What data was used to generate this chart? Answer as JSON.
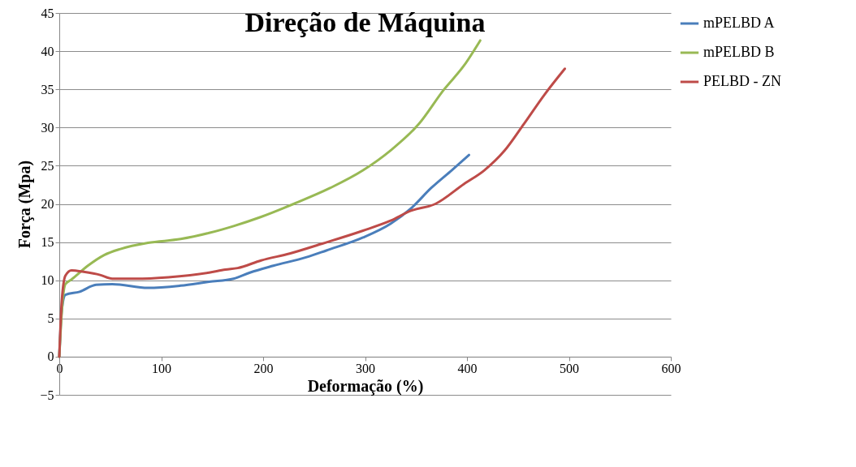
{
  "chart_data": {
    "type": "line",
    "title": "Direção de Máquina",
    "xlabel": "Deformação (%)",
    "ylabel": "Força (Mpa)",
    "xlim": [
      0,
      600
    ],
    "xticks": [
      0,
      100,
      200,
      300,
      400,
      500,
      600
    ],
    "ylim": [
      -5,
      45
    ],
    "yticks": [
      -5,
      0,
      5,
      10,
      15,
      20,
      25,
      30,
      35,
      40,
      45
    ],
    "grid": "y",
    "legend": "right",
    "marker": "none",
    "line_style": "solid",
    "series": [
      {
        "name": "mPELBD A",
        "color": "#4a7ebb",
        "x": [
          0,
          2.4,
          6,
          20,
          36,
          52,
          87,
          119,
          147,
          171,
          187,
          210,
          242,
          262,
          298,
          325,
          345,
          365,
          385,
          402
        ],
        "values": [
          0,
          6,
          8.1,
          8.5,
          9.4,
          9.5,
          9.0,
          9.3,
          9.8,
          10.2,
          11.0,
          11.9,
          13.0,
          13.9,
          15.6,
          17.4,
          19.4,
          22.1,
          24.4,
          26.4
        ]
      },
      {
        "name": "mPELBD B",
        "color": "#98b954",
        "x": [
          0,
          3.2,
          6,
          12,
          28,
          44,
          60,
          87,
          119,
          147,
          171,
          198,
          230,
          266,
          298,
          325,
          353,
          377,
          397,
          413
        ],
        "values": [
          0,
          7.2,
          9.5,
          10.1,
          11.9,
          13.3,
          14.1,
          14.9,
          15.4,
          16.2,
          17.1,
          18.3,
          20.0,
          22.1,
          24.4,
          27.0,
          30.5,
          34.9,
          38.1,
          41.4
        ]
      },
      {
        "name": "PELBD - ZN",
        "color": "#be4b48",
        "x": [
          0,
          2.4,
          6,
          12,
          24,
          40,
          52,
          75,
          107,
          147,
          163,
          175,
          198,
          226,
          258,
          298,
          325,
          345,
          369,
          397,
          417,
          437,
          456,
          476,
          496
        ],
        "values": [
          0,
          7.2,
          10.6,
          11.3,
          11.1,
          10.7,
          10.2,
          10.2,
          10.4,
          11.0,
          11.4,
          11.6,
          12.6,
          13.5,
          14.8,
          16.5,
          17.8,
          19.1,
          20.0,
          22.6,
          24.4,
          27.0,
          30.5,
          34.3,
          37.7
        ]
      }
    ]
  }
}
